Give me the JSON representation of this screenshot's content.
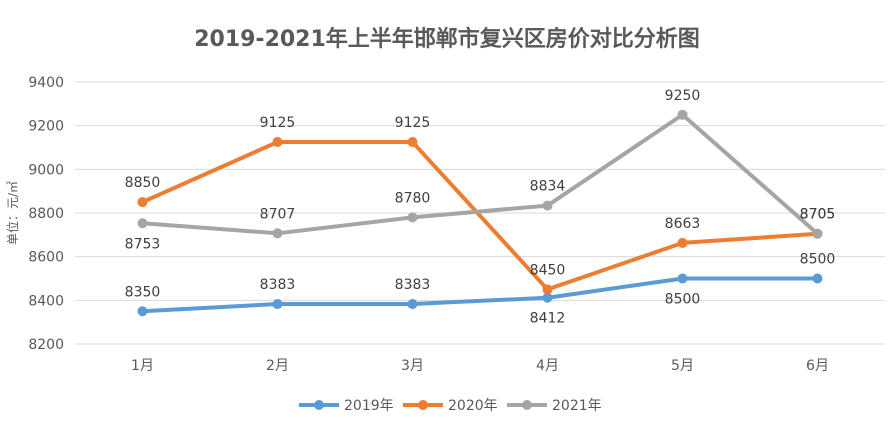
{
  "chart_data": {
    "type": "line",
    "title": "2019-2021年上半年邯郸市复兴区房价对比分析图",
    "xlabel": "",
    "ylabel": "单位：元/㎡",
    "categories": [
      "1月",
      "2月",
      "3月",
      "4月",
      "5月",
      "6月"
    ],
    "ylim": [
      8200,
      9400
    ],
    "yticks": [
      8200,
      8400,
      8600,
      8800,
      9000,
      9200,
      9400
    ],
    "grid": true,
    "legend_position": "bottom",
    "series": [
      {
        "name": "2019年",
        "color": "#5b9bd5",
        "values": [
          8350,
          8383,
          8383,
          8412,
          8500,
          8500
        ]
      },
      {
        "name": "2020年",
        "color": "#ed7d31",
        "values": [
          8850,
          9125,
          9125,
          8450,
          8663,
          8705
        ]
      },
      {
        "name": "2021年",
        "color": "#a5a5a5",
        "values": [
          8753,
          8707,
          8780,
          8834,
          9250,
          8705
        ]
      }
    ]
  }
}
